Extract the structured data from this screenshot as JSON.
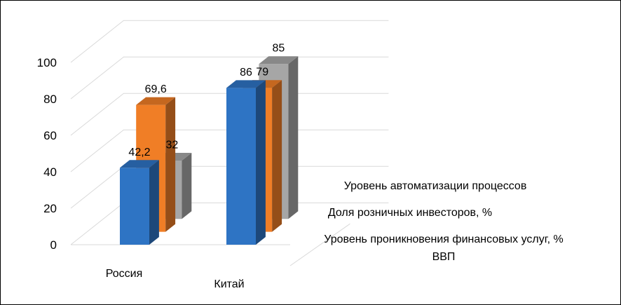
{
  "chart_data": {
    "type": "bar",
    "categories": [
      "Россия",
      "Китай"
    ],
    "series": [
      {
        "name": "Уровень проникновения  финансовых услуг, % ВВП",
        "values": [
          42.2,
          86
        ],
        "value_labels": [
          "42,2",
          "86"
        ],
        "color": "#2e74c4"
      },
      {
        "name": "Доля розничных инвесторов, %",
        "values": [
          69.6,
          79
        ],
        "value_labels": [
          "69,6",
          "79"
        ],
        "color": "#f07e26"
      },
      {
        "name": "Уровень автоматизации процессов",
        "values": [
          32,
          85
        ],
        "value_labels": [
          "32",
          "85"
        ],
        "color": "#a6a6a6"
      }
    ],
    "series_label_lines": [
      [
        "Уровень проникновения  финансовых услуг, %",
        "ВВП"
      ],
      [
        "Доля розничных инвесторов, %"
      ],
      [
        "Уровень автоматизации процессов"
      ]
    ],
    "yticks": [
      "0",
      "20",
      "40",
      "60",
      "80",
      "100"
    ],
    "ylim": [
      0,
      100
    ],
    "grid": true,
    "projection": "3d-clustered",
    "legend": "series labels on depth axis"
  }
}
